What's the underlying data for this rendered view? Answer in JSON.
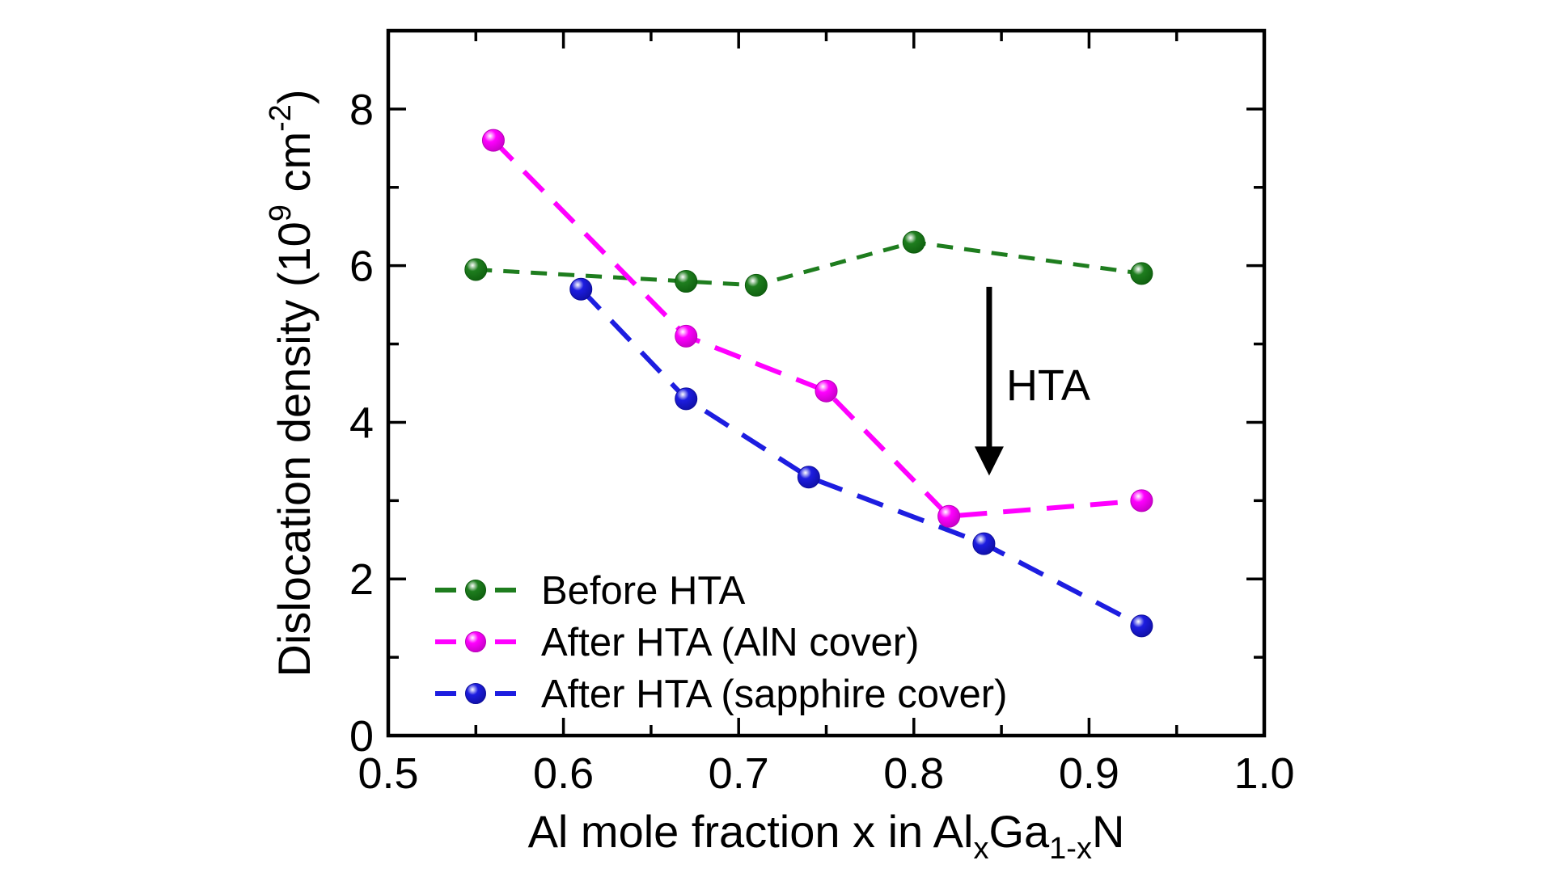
{
  "figure": {
    "background_color": "#ffffff",
    "axis_color": "#000000",
    "text_color": "#000000"
  },
  "chart_data": {
    "type": "line",
    "title": "",
    "xlabel_text": "Al mole fraction x in AlxGa1-xN",
    "xlabel_rich": [
      {
        "t": "Al mole fraction x in Al"
      },
      {
        "t": "x",
        "sub": true
      },
      {
        "t": "Ga"
      },
      {
        "t": "1-x",
        "sub": true
      },
      {
        "t": "N"
      }
    ],
    "ylabel_text": "Dislocation density (10^9 cm^-2)",
    "ylabel_rich": [
      {
        "t": "Dislocation density (10"
      },
      {
        "t": "9",
        "sup": true
      },
      {
        "t": " cm"
      },
      {
        "t": "-2",
        "sup": true
      },
      {
        "t": ")"
      }
    ],
    "xlim": [
      0.5,
      1.0
    ],
    "ylim": [
      0,
      9
    ],
    "grid": false,
    "x_major_ticks": [
      0.5,
      0.6,
      0.7,
      0.8,
      0.9,
      1.0
    ],
    "x_tick_labels": [
      "0.5",
      "0.6",
      "0.7",
      "0.8",
      "0.9",
      "1.0"
    ],
    "x_minor_ticks": [
      0.55,
      0.65,
      0.75,
      0.85,
      0.95
    ],
    "y_major_ticks": [
      0,
      2,
      4,
      6,
      8
    ],
    "y_tick_labels": [
      "0",
      "2",
      "4",
      "6",
      "8"
    ],
    "y_minor_ticks": [
      1,
      3,
      5,
      7
    ],
    "legend_position": "inside-bottom-left",
    "series": [
      {
        "name": "Before HTA",
        "color": "#1e7d1e",
        "marker_dark": "#0c5a0c",
        "x": [
          0.55,
          0.67,
          0.71,
          0.8,
          0.93
        ],
        "y": [
          5.95,
          5.8,
          5.75,
          6.3,
          5.9
        ]
      },
      {
        "name": "After HTA (AlN cover)",
        "color": "#ff00ff",
        "marker_dark": "#bb00bb",
        "x": [
          0.56,
          0.67,
          0.75,
          0.82,
          0.93
        ],
        "y": [
          7.6,
          5.1,
          4.4,
          2.8,
          3.0
        ]
      },
      {
        "name": "After HTA (sapphire cover)",
        "color": "#1d1de0",
        "marker_dark": "#0d0d9a",
        "x": [
          0.61,
          0.67,
          0.74,
          0.84,
          0.93
        ],
        "y": [
          5.7,
          4.3,
          3.3,
          2.45,
          1.4
        ]
      }
    ],
    "annotation": {
      "text": "HTA",
      "arrow_x": 0.843,
      "arrow_y_from": 5.73,
      "arrow_y_to": 3.32
    }
  }
}
